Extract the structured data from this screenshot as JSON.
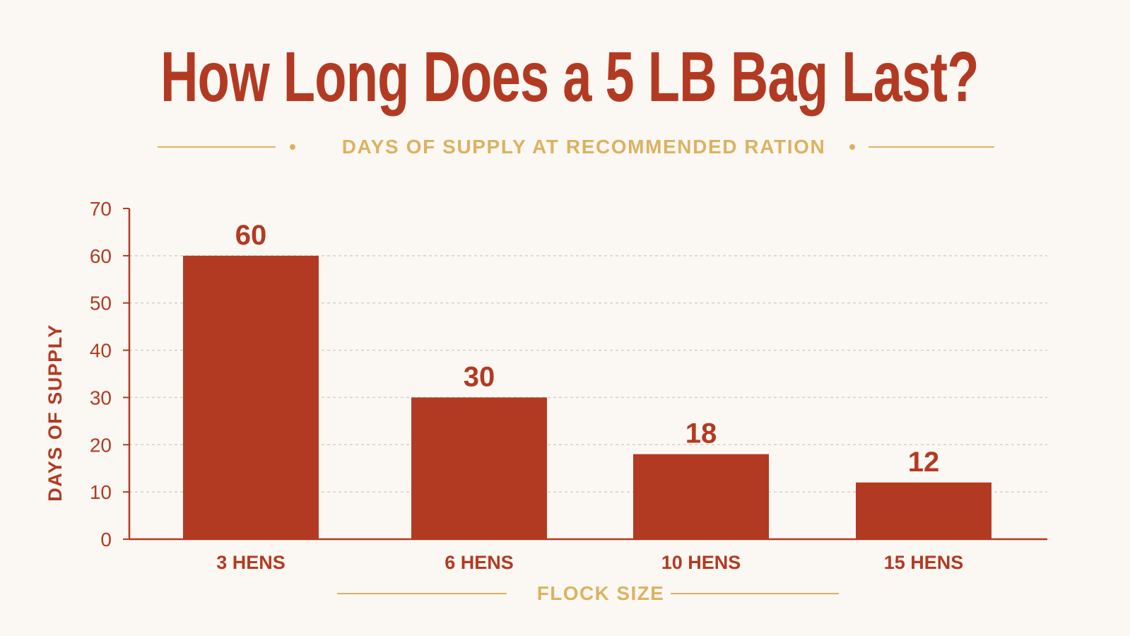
{
  "header": {
    "title": "How Long Does a 5 LB Bag Last?",
    "subtitle": "DAYS OF SUPPLY AT RECOMMENDED RATION"
  },
  "colors": {
    "background": "#fbf8f3",
    "bar": "#b33a22",
    "accent": "#dcb261",
    "axis": "#b33a22",
    "grid": "#d9cfc2"
  },
  "chart_data": {
    "type": "bar",
    "title": "How Long Does a 5 LB Bag Last?",
    "subtitle": "DAYS OF SUPPLY AT RECOMMENDED RATION",
    "categories": [
      "3 HENS",
      "6 HENS",
      "10 HENS",
      "15 HENS"
    ],
    "values": [
      60,
      30,
      18,
      12
    ],
    "xlabel": "FLOCK SIZE",
    "ylabel": "DAYS OF SUPPLY",
    "ylim": [
      0,
      70
    ],
    "yticks": [
      0,
      10,
      20,
      30,
      40,
      50,
      60,
      70
    ],
    "data_labels": true,
    "grid": "horizontal dashed",
    "legend": "none"
  }
}
